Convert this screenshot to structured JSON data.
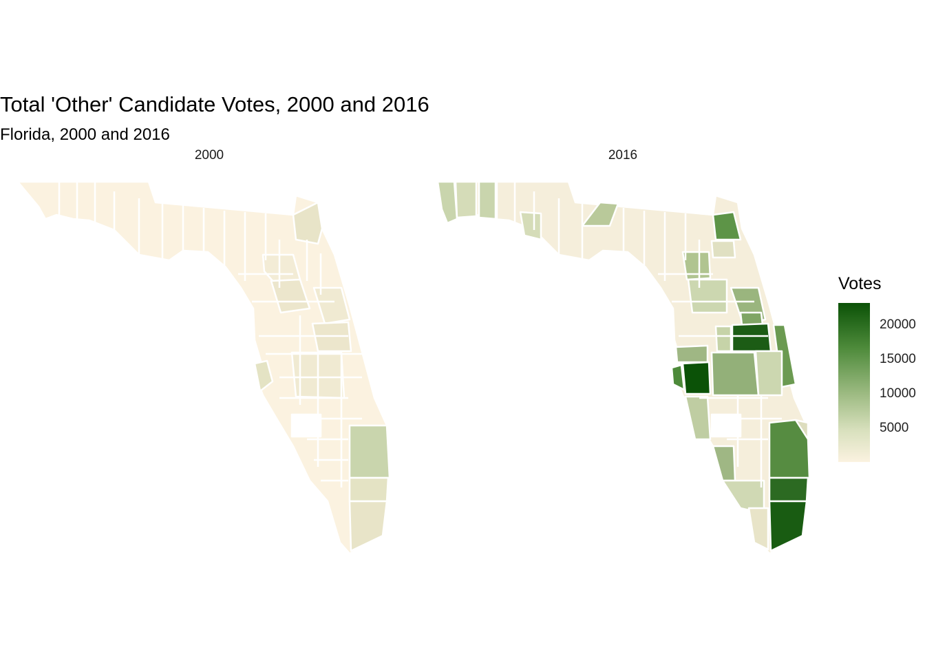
{
  "title": "Total 'Other' Candidate Votes, 2000 and 2016",
  "subtitle": "Florida, 2000 and 2016",
  "facets": [
    {
      "label": "2000"
    },
    {
      "label": "2016"
    }
  ],
  "legend": {
    "title": "Votes",
    "labels": [
      "20000",
      "15000",
      "10000",
      "5000"
    ],
    "colors": {
      "high": "#0b5207",
      "mid": "#9fbc84",
      "low": "#fbf2e0"
    }
  },
  "chart_data": {
    "type": "heatmap",
    "kind": "choropleth map (Florida counties)",
    "title": "Total 'Other' Candidate Votes, 2000 and 2016",
    "subtitle": "Florida, 2000 and 2016",
    "facets": [
      "2000",
      "2016"
    ],
    "legend_title": "Votes",
    "scale_ticks": [
      5000,
      10000,
      15000,
      20000
    ],
    "scale_range": [
      0,
      22500
    ],
    "legend_placement": "right",
    "county_border_color": "#ffffff"
  }
}
